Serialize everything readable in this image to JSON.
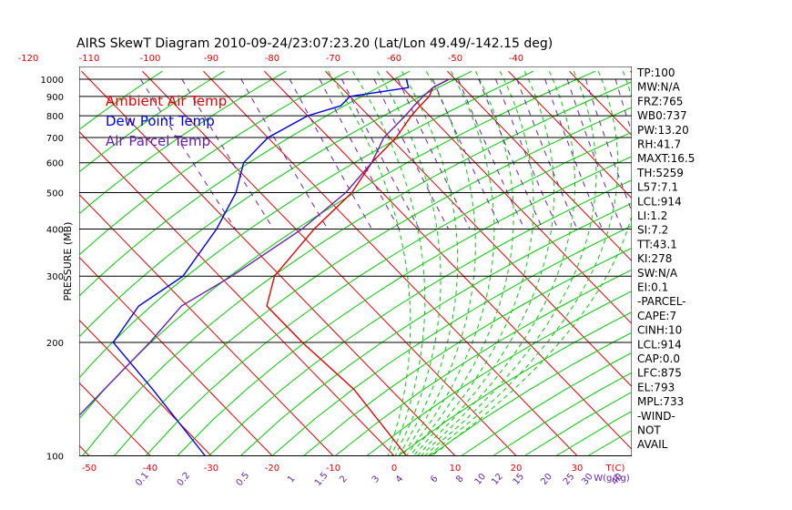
{
  "chart_data": {
    "type": "line",
    "title": "AIRS SkewT Diagram 2010-09-24/23:07:23.20 (Lat/Lon 49.49/-142.15 deg)",
    "ylabel": "PRESSURE (MB)",
    "y_scale": "log-pressure",
    "ylim": [
      1000,
      100
    ],
    "y_ticks": [
      "100",
      "200",
      "300",
      "400",
      "500",
      "600",
      "700",
      "800",
      "900",
      "1000"
    ],
    "x_ticks_bottom": [
      "-50",
      "-40",
      "-30",
      "-20",
      "-10",
      "0",
      "10",
      "20",
      "30"
    ],
    "x_unit_bottom": "T(C)",
    "x_ticks_top": [
      "-120",
      "-110",
      "-100",
      "-90",
      "-80",
      "-70",
      "-60",
      "-50",
      "-40"
    ],
    "mixing_ratio_ticks": [
      "0.1",
      "0.2",
      "0.5",
      "1",
      "1.5",
      "2",
      "3",
      "4",
      "6",
      "8",
      "10",
      "12",
      "15",
      "20",
      "25",
      "30",
      "40"
    ],
    "mixing_ratio_unit": "W(g/kg)",
    "legend": [
      "Ambient Air Temp",
      "Dew Point Temp",
      "Air Parcel Temp"
    ],
    "series": [
      {
        "name": "Ambient Air Temp",
        "color": "#e60000",
        "points": [
          [
            1000,
            9
          ],
          [
            950,
            5
          ],
          [
            900,
            3
          ],
          [
            850,
            0
          ],
          [
            800,
            -3
          ],
          [
            700,
            -9
          ],
          [
            600,
            -17
          ],
          [
            500,
            -25
          ],
          [
            400,
            -37
          ],
          [
            300,
            -51
          ],
          [
            250,
            -57
          ],
          [
            200,
            -57
          ],
          [
            150,
            -56
          ],
          [
            100,
            -58
          ]
        ]
      },
      {
        "name": "Dew Point Temp",
        "color": "#0000e6",
        "points": [
          [
            1000,
            2
          ],
          [
            950,
            1
          ],
          [
            900,
            -10
          ],
          [
            850,
            -13
          ],
          [
            800,
            -20
          ],
          [
            700,
            -30
          ],
          [
            600,
            -38
          ],
          [
            500,
            -44
          ],
          [
            400,
            -53
          ],
          [
            300,
            -66
          ],
          [
            250,
            -78
          ],
          [
            200,
            -88
          ],
          [
            150,
            -89
          ],
          [
            100,
            -91
          ]
        ]
      },
      {
        "name": "Air Parcel Temp",
        "color": "#6a1fb0",
        "points": [
          [
            1000,
            9
          ],
          [
            950,
            5
          ],
          [
            900,
            2
          ],
          [
            850,
            -1
          ],
          [
            800,
            -4
          ],
          [
            700,
            -11
          ],
          [
            600,
            -17
          ],
          [
            500,
            -26
          ],
          [
            400,
            -39
          ],
          [
            300,
            -58
          ],
          [
            250,
            -71
          ],
          [
            200,
            -82
          ],
          [
            150,
            -97
          ],
          [
            100,
            -118
          ]
        ]
      }
    ],
    "indices": [
      "TP:100",
      "MW:N/A",
      "FRZ:765",
      "WB0:737",
      "PW:13.20",
      "RH:41.7",
      "MAXT:16.5",
      "TH:5259",
      "L57:7.1",
      "LCL:914",
      "LI:1.2",
      "SI:7.2",
      "TT:43.1",
      "KI:278",
      "SW:N/A",
      "EI:0.1",
      "-PARCEL-",
      "CAPE:7",
      "CINH:10",
      "LCL:914",
      "CAP:0.0",
      "LFC:875",
      "EL:793",
      "MPL:733",
      "-WIND-",
      "NOT",
      "AVAIL"
    ]
  },
  "colors": {
    "isotherm": "#e60000",
    "dry_adiabat": "#00cc00",
    "moist_adiabat": "#00cc00",
    "mixing_ratio": "#6a1fb0",
    "isobar": "#000000"
  }
}
